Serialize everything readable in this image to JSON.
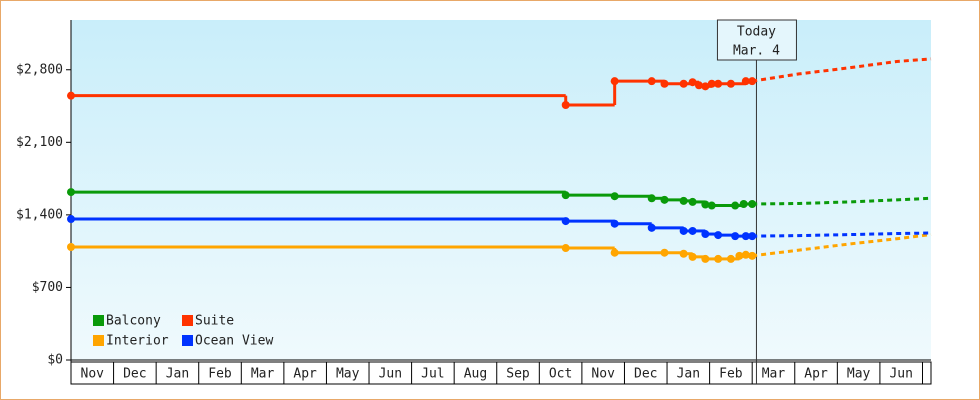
{
  "chart_data": {
    "type": "step-line",
    "categories": [
      "Nov",
      "Dec",
      "Jan",
      "Feb",
      "Mar",
      "Apr",
      "May",
      "Jun",
      "Jul",
      "Aug",
      "Sep",
      "Oct",
      "Nov",
      "Dec",
      "Jan",
      "Feb",
      "Mar",
      "Apr",
      "May",
      "Jun"
    ],
    "xlim": [
      0,
      20.2
    ],
    "ylim": [
      0,
      3280
    ],
    "yticks": [
      {
        "value": 0,
        "label": "$0"
      },
      {
        "value": 700,
        "label": "$700"
      },
      {
        "value": 1400,
        "label": "$1,400"
      },
      {
        "value": 2100,
        "label": "$2,100"
      },
      {
        "value": 2800,
        "label": "$2,800"
      }
    ],
    "annotation": {
      "x": 16.1,
      "lines": [
        "Today",
        "Mar. 4"
      ]
    },
    "legend": "lower left",
    "series": [
      {
        "name": "Balcony",
        "color": "#0a9a0a",
        "x": [
          0,
          11.62,
          12.77,
          13.64,
          13.94,
          14.39,
          14.6,
          14.9,
          15.05,
          15.6,
          15.8,
          16.0
        ],
        "values": [
          1620,
          1590,
          1580,
          1560,
          1545,
          1535,
          1525,
          1500,
          1490,
          1490,
          1505,
          1505
        ],
        "forecast_x": [
          16.0,
          17.1,
          18.3,
          19.4,
          20.2
        ],
        "forecast_values": [
          1505,
          1510,
          1525,
          1545,
          1560
        ]
      },
      {
        "name": "Suite",
        "color": "#ff3300",
        "x": [
          0,
          11.62,
          12.77,
          13.64,
          13.94,
          14.39,
          14.6,
          14.75,
          14.9,
          15.05,
          15.2,
          15.5,
          15.85,
          16.0
        ],
        "values": [
          2550,
          2460,
          2690,
          2690,
          2665,
          2665,
          2680,
          2650,
          2640,
          2665,
          2665,
          2665,
          2690,
          2690
        ],
        "forecast_x": [
          16.0,
          17.1,
          18.3,
          19.4,
          20.2
        ],
        "forecast_values": [
          2690,
          2760,
          2820,
          2880,
          2905
        ]
      },
      {
        "name": "Interior",
        "color": "#ffa500",
        "x": [
          0,
          11.62,
          12.77,
          13.94,
          14.39,
          14.6,
          14.9,
          15.2,
          15.5,
          15.7,
          15.85,
          16.0
        ],
        "values": [
          1090,
          1080,
          1035,
          1035,
          1025,
          995,
          975,
          975,
          975,
          1005,
          1015,
          1005
        ],
        "forecast_x": [
          16.0,
          17.1,
          18.3,
          19.4,
          20.2
        ],
        "forecast_values": [
          1005,
          1060,
          1120,
          1170,
          1210
        ]
      },
      {
        "name": "Ocean View",
        "color": "#0033ff",
        "x": [
          0,
          11.62,
          12.77,
          13.64,
          14.39,
          14.6,
          14.9,
          15.2,
          15.6,
          15.85,
          16.0
        ],
        "values": [
          1360,
          1340,
          1315,
          1275,
          1245,
          1245,
          1215,
          1205,
          1195,
          1195,
          1195
        ],
        "forecast_x": [
          16.0,
          17.1,
          18.3,
          19.4,
          20.2
        ],
        "forecast_values": [
          1195,
          1200,
          1210,
          1220,
          1225
        ]
      }
    ]
  }
}
